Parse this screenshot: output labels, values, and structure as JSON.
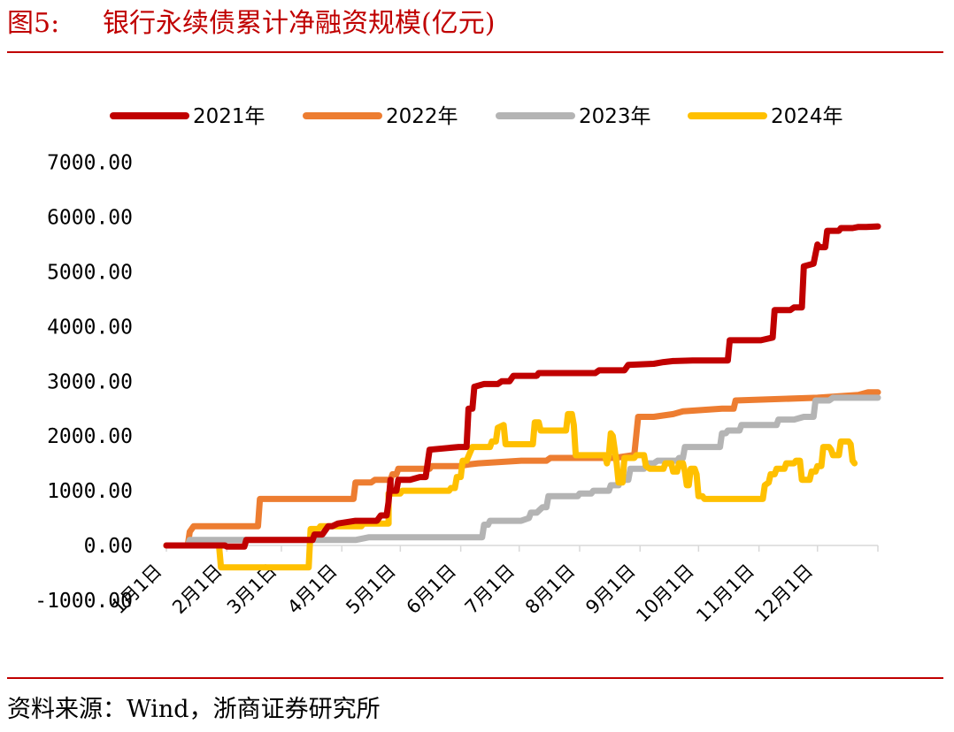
{
  "figure": {
    "number": "图5:",
    "title": "银行永续债累计净融资规模(亿元)",
    "source": "资料来源：Wind，浙商证券研究所"
  },
  "chart_data": {
    "type": "line",
    "y_unit": "亿元",
    "ylim": [
      -1000,
      7000
    ],
    "y_ticks": [
      -1000,
      0,
      1000,
      2000,
      3000,
      4000,
      5000,
      6000,
      7000
    ],
    "y_tick_labels": [
      "-1000.00",
      "0.00",
      "1000.00",
      "2000.00",
      "3000.00",
      "4000.00",
      "5000.00",
      "6000.00",
      "7000.00"
    ],
    "x_domain_days": [
      0,
      365
    ],
    "x_ticks": [
      {
        "label": "1月1日",
        "day": 0
      },
      {
        "label": "2月1日",
        "day": 31
      },
      {
        "label": "3月1日",
        "day": 59
      },
      {
        "label": "4月1日",
        "day": 90
      },
      {
        "label": "5月1日",
        "day": 120
      },
      {
        "label": "6月1日",
        "day": 151
      },
      {
        "label": "7月1日",
        "day": 181
      },
      {
        "label": "8月1日",
        "day": 212
      },
      {
        "label": "9月1日",
        "day": 243
      },
      {
        "label": "10月1日",
        "day": 273
      },
      {
        "label": "11月1日",
        "day": 304
      },
      {
        "label": "12月1日",
        "day": 334
      }
    ],
    "grid": false,
    "legend_position": "top",
    "series": [
      {
        "name": "2021年",
        "color": "#c00000",
        "points": [
          [
            0,
            0
          ],
          [
            30,
            0
          ],
          [
            31,
            -20
          ],
          [
            40,
            -20
          ],
          [
            41,
            100
          ],
          [
            75,
            100
          ],
          [
            76,
            200
          ],
          [
            80,
            200
          ],
          [
            83,
            350
          ],
          [
            85,
            350
          ],
          [
            88,
            400
          ],
          [
            97,
            450
          ],
          [
            108,
            450
          ],
          [
            110,
            550
          ],
          [
            113,
            550
          ],
          [
            114,
            800
          ],
          [
            115,
            1200
          ],
          [
            115,
            1000
          ],
          [
            118,
            1000
          ],
          [
            119,
            1200
          ],
          [
            125,
            1200
          ],
          [
            130,
            1250
          ],
          [
            133,
            1250
          ],
          [
            135,
            1750
          ],
          [
            150,
            1800
          ],
          [
            154,
            1800
          ],
          [
            155,
            2500
          ],
          [
            157,
            2500
          ],
          [
            158,
            2900
          ],
          [
            163,
            2950
          ],
          [
            170,
            2950
          ],
          [
            172,
            3000
          ],
          [
            176,
            3000
          ],
          [
            178,
            3100
          ],
          [
            190,
            3100
          ],
          [
            191,
            3150
          ],
          [
            220,
            3150
          ],
          [
            222,
            3200
          ],
          [
            235,
            3200
          ],
          [
            237,
            3300
          ],
          [
            250,
            3320
          ],
          [
            255,
            3350
          ],
          [
            260,
            3370
          ],
          [
            270,
            3380
          ],
          [
            288,
            3380
          ],
          [
            289,
            3750
          ],
          [
            305,
            3750
          ],
          [
            311,
            3800
          ],
          [
            312,
            4300
          ],
          [
            320,
            4300
          ],
          [
            322,
            4350
          ],
          [
            326,
            4350
          ],
          [
            327,
            5100
          ],
          [
            332,
            5150
          ],
          [
            334,
            5500
          ],
          [
            335,
            5450
          ],
          [
            338,
            5450
          ],
          [
            339,
            5750
          ],
          [
            345,
            5750
          ],
          [
            346,
            5800
          ],
          [
            352,
            5800
          ],
          [
            355,
            5820
          ],
          [
            359,
            5820
          ],
          [
            365,
            5830
          ]
        ]
      },
      {
        "name": "2022年",
        "color": "#ed7d31",
        "points": [
          [
            0,
            0
          ],
          [
            11,
            0
          ],
          [
            12,
            250
          ],
          [
            14,
            350
          ],
          [
            40,
            350
          ],
          [
            47,
            350
          ],
          [
            48,
            850
          ],
          [
            70,
            850
          ],
          [
            92,
            850
          ],
          [
            96,
            850
          ],
          [
            97,
            1150
          ],
          [
            105,
            1150
          ],
          [
            107,
            1200
          ],
          [
            115,
            1200
          ],
          [
            116,
            1300
          ],
          [
            118,
            1300
          ],
          [
            119,
            1400
          ],
          [
            135,
            1400
          ],
          [
            136,
            1450
          ],
          [
            150,
            1450
          ],
          [
            155,
            1480
          ],
          [
            160,
            1500
          ],
          [
            182,
            1550
          ],
          [
            195,
            1550
          ],
          [
            197,
            1600
          ],
          [
            230,
            1600
          ],
          [
            239,
            1650
          ],
          [
            240,
            1650
          ],
          [
            241,
            2000
          ],
          [
            242,
            2350
          ],
          [
            250,
            2350
          ],
          [
            260,
            2400
          ],
          [
            265,
            2450
          ],
          [
            285,
            2500
          ],
          [
            291,
            2500
          ],
          [
            292,
            2650
          ],
          [
            334,
            2700
          ],
          [
            355,
            2750
          ],
          [
            360,
            2800
          ],
          [
            365,
            2800
          ]
        ]
      },
      {
        "name": "2023年",
        "color": "#b4b4b4",
        "points": [
          [
            0,
            0
          ],
          [
            11,
            0
          ],
          [
            12,
            100
          ],
          [
            40,
            100
          ],
          [
            50,
            100
          ],
          [
            60,
            100
          ],
          [
            70,
            100
          ],
          [
            97,
            100
          ],
          [
            104,
            150
          ],
          [
            125,
            150
          ],
          [
            130,
            150
          ],
          [
            150,
            150
          ],
          [
            162,
            150
          ],
          [
            163,
            380
          ],
          [
            165,
            380
          ],
          [
            166,
            450
          ],
          [
            180,
            450
          ],
          [
            182,
            450
          ],
          [
            186,
            500
          ],
          [
            187,
            600
          ],
          [
            190,
            600
          ],
          [
            193,
            700
          ],
          [
            195,
            700
          ],
          [
            196,
            900
          ],
          [
            211,
            900
          ],
          [
            212,
            950
          ],
          [
            218,
            950
          ],
          [
            219,
            1000
          ],
          [
            227,
            1000
          ],
          [
            228,
            1100
          ],
          [
            232,
            1100
          ],
          [
            233,
            1200
          ],
          [
            237,
            1200
          ],
          [
            238,
            1400
          ],
          [
            245,
            1400
          ],
          [
            247,
            1500
          ],
          [
            250,
            1500
          ],
          [
            252,
            1550
          ],
          [
            262,
            1550
          ],
          [
            263,
            1600
          ],
          [
            265,
            1600
          ],
          [
            266,
            1800
          ],
          [
            284,
            1800
          ],
          [
            285,
            2050
          ],
          [
            287,
            2050
          ],
          [
            288,
            2100
          ],
          [
            294,
            2100
          ],
          [
            295,
            2200
          ],
          [
            305,
            2200
          ],
          [
            313,
            2200
          ],
          [
            314,
            2300
          ],
          [
            322,
            2300
          ],
          [
            327,
            2350
          ],
          [
            332,
            2350
          ],
          [
            333,
            2650
          ],
          [
            340,
            2650
          ],
          [
            342,
            2700
          ],
          [
            365,
            2700
          ]
        ]
      },
      {
        "name": "2024年",
        "color": "#ffc000",
        "points": [
          [
            0,
            0
          ],
          [
            27,
            0
          ],
          [
            28,
            -400
          ],
          [
            35,
            -400
          ],
          [
            58,
            -400
          ],
          [
            73,
            -400
          ],
          [
            74,
            300
          ],
          [
            78,
            300
          ],
          [
            79,
            350
          ],
          [
            100,
            350
          ],
          [
            101,
            400
          ],
          [
            108,
            400
          ],
          [
            114,
            400
          ],
          [
            114,
            950
          ],
          [
            120,
            950
          ],
          [
            121,
            1000
          ],
          [
            145,
            1000
          ],
          [
            146,
            1050
          ],
          [
            148,
            1050
          ],
          [
            149,
            1250
          ],
          [
            151,
            1250
          ],
          [
            152,
            1550
          ],
          [
            154,
            1550
          ],
          [
            157,
            1800
          ],
          [
            166,
            1800
          ],
          [
            167,
            1900
          ],
          [
            169,
            1900
          ],
          [
            170,
            2150
          ],
          [
            173,
            2200
          ],
          [
            174,
            1850
          ],
          [
            188,
            1850
          ],
          [
            189,
            2250
          ],
          [
            191,
            2250
          ],
          [
            192,
            2100
          ],
          [
            205,
            2100
          ],
          [
            206,
            2400
          ],
          [
            208,
            2400
          ],
          [
            209,
            2200
          ],
          [
            210,
            1650
          ],
          [
            221,
            1650
          ],
          [
            225,
            1650
          ],
          [
            226,
            1500
          ],
          [
            227,
            1650
          ],
          [
            228,
            2050
          ],
          [
            229,
            2000
          ],
          [
            231,
            1500
          ],
          [
            232,
            1150
          ],
          [
            234,
            1150
          ],
          [
            235,
            1600
          ],
          [
            240,
            1600
          ],
          [
            241,
            1650
          ],
          [
            245,
            1650
          ],
          [
            246,
            1450
          ],
          [
            248,
            1400
          ],
          [
            255,
            1400
          ],
          [
            256,
            1500
          ],
          [
            259,
            1500
          ],
          [
            260,
            1350
          ],
          [
            262,
            1350
          ],
          [
            263,
            1500
          ],
          [
            265,
            1500
          ],
          [
            266,
            1350
          ],
          [
            267,
            1100
          ],
          [
            268,
            1100
          ],
          [
            269,
            1400
          ],
          [
            271,
            1400
          ],
          [
            272,
            1300
          ],
          [
            273,
            900
          ],
          [
            275,
            900
          ],
          [
            276,
            850
          ],
          [
            297,
            850
          ],
          [
            303,
            850
          ],
          [
            306,
            850
          ],
          [
            307,
            1100
          ],
          [
            309,
            1150
          ],
          [
            310,
            1300
          ],
          [
            312,
            1300
          ],
          [
            313,
            1400
          ],
          [
            317,
            1400
          ],
          [
            318,
            1500
          ],
          [
            322,
            1500
          ],
          [
            323,
            1550
          ],
          [
            325,
            1550
          ],
          [
            326,
            1200
          ],
          [
            330,
            1200
          ],
          [
            331,
            1350
          ],
          [
            333,
            1350
          ],
          [
            334,
            1450
          ],
          [
            336,
            1450
          ],
          [
            337,
            1800
          ],
          [
            340,
            1800
          ],
          [
            341,
            1750
          ],
          [
            342,
            1650
          ],
          [
            345,
            1650
          ],
          [
            346,
            1900
          ],
          [
            350,
            1900
          ],
          [
            351,
            1850
          ],
          [
            352,
            1550
          ],
          [
            353,
            1500
          ]
        ]
      }
    ]
  }
}
